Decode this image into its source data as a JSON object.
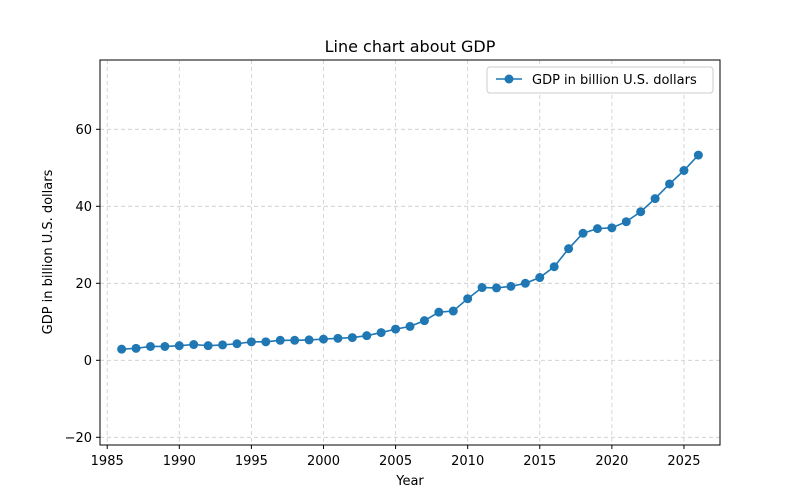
{
  "chart_data": {
    "type": "line",
    "title": "Line chart about GDP",
    "xlabel": "Year",
    "ylabel": "GDP in billion U.S. dollars",
    "xlim": [
      1984.5,
      2027.5
    ],
    "ylim": [
      -22,
      78
    ],
    "xticks": [
      1985,
      1990,
      1995,
      2000,
      2005,
      2010,
      2015,
      2020,
      2025
    ],
    "yticks": [
      -20,
      0,
      20,
      40,
      60
    ],
    "grid": true,
    "legend": {
      "position": "top-right"
    },
    "colors": {
      "series": "#1f77b4",
      "grid": "#cccccc",
      "axis": "#000000"
    },
    "series": [
      {
        "name": "GDP in billion U.S. dollars",
        "x": [
          1986,
          1987,
          1988,
          1989,
          1990,
          1991,
          1992,
          1993,
          1994,
          1995,
          1996,
          1997,
          1998,
          1999,
          2000,
          2001,
          2002,
          2003,
          2004,
          2005,
          2006,
          2007,
          2008,
          2009,
          2010,
          2011,
          2012,
          2013,
          2014,
          2015,
          2016,
          2017,
          2018,
          2019,
          2020,
          2021,
          2022,
          2023,
          2024,
          2025,
          2026
        ],
        "y": [
          2.9,
          3.1,
          3.6,
          3.6,
          3.8,
          4.1,
          3.8,
          4.0,
          4.3,
          4.8,
          4.8,
          5.2,
          5.2,
          5.3,
          5.5,
          5.7,
          5.9,
          6.4,
          7.2,
          8.1,
          8.8,
          10.3,
          12.5,
          12.8,
          16.0,
          18.9,
          18.8,
          19.2,
          20.0,
          21.5,
          24.3,
          29.0,
          33.0,
          34.2,
          34.4,
          36.0,
          38.6,
          42.0,
          45.8,
          49.3,
          53.3
        ]
      }
    ]
  }
}
